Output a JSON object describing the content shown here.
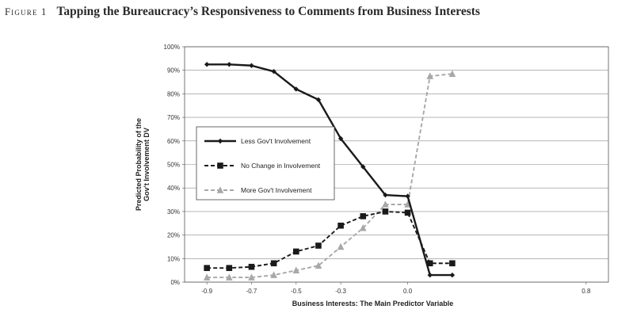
{
  "figure": {
    "label": "Figure 1",
    "title": "Tapping the Bureaucracy’s Responsiveness to Comments from Business Interests"
  },
  "chart_data": {
    "type": "line",
    "xlabel": "Business Interests: The Main Predictor Variable",
    "ylabel": [
      "Predicted Probability of the",
      "Gov't Involvement DV"
    ],
    "xlim": [
      -1.0,
      0.9
    ],
    "ylim": [
      0,
      100
    ],
    "x_ticks": [
      -0.9,
      -0.7,
      -0.5,
      -0.3,
      0.0,
      0.8
    ],
    "x_tick_labels": [
      "-0.9",
      "-0.7",
      "-0.5",
      "-0.3",
      "0.0",
      "0.8"
    ],
    "y_ticks": [
      0,
      10,
      20,
      30,
      40,
      50,
      60,
      70,
      80,
      90,
      100
    ],
    "y_tick_labels": [
      "0%",
      "10%",
      "20%",
      "30%",
      "40%",
      "50%",
      "60%",
      "70%",
      "80%",
      "90%",
      "100%"
    ],
    "grid": true,
    "legend_position": "middle-left",
    "series": [
      {
        "name": "Less Gov't Involvement",
        "color": "#1a1a1a",
        "style": "solid",
        "marker": "diamond",
        "x": [
          -0.9,
          -0.8,
          -0.7,
          -0.6,
          -0.5,
          -0.4,
          -0.3,
          -0.2,
          -0.1,
          0.0,
          0.1,
          0.2
        ],
        "values": [
          92.5,
          92.5,
          92,
          89.5,
          82,
          77.5,
          61,
          49,
          37,
          36.5,
          3,
          3
        ]
      },
      {
        "name": "No Change in Involvement",
        "color": "#1a1a1a",
        "style": "dashed",
        "marker": "square",
        "x": [
          -0.9,
          -0.8,
          -0.7,
          -0.6,
          -0.5,
          -0.4,
          -0.3,
          -0.2,
          -0.1,
          0.0,
          0.1,
          0.2
        ],
        "values": [
          6,
          6,
          6.5,
          8,
          13,
          15.5,
          24,
          28,
          30,
          29.5,
          8,
          8
        ]
      },
      {
        "name": "More Gov't Involvement",
        "color": "#a8a8a8",
        "style": "dashed",
        "marker": "triangle",
        "x": [
          -0.9,
          -0.8,
          -0.7,
          -0.6,
          -0.5,
          -0.4,
          -0.3,
          -0.2,
          -0.1,
          0.0,
          0.1,
          0.2
        ],
        "values": [
          2,
          2,
          2,
          3,
          5,
          7,
          15,
          23,
          33,
          33,
          87.5,
          88.5
        ]
      }
    ]
  }
}
